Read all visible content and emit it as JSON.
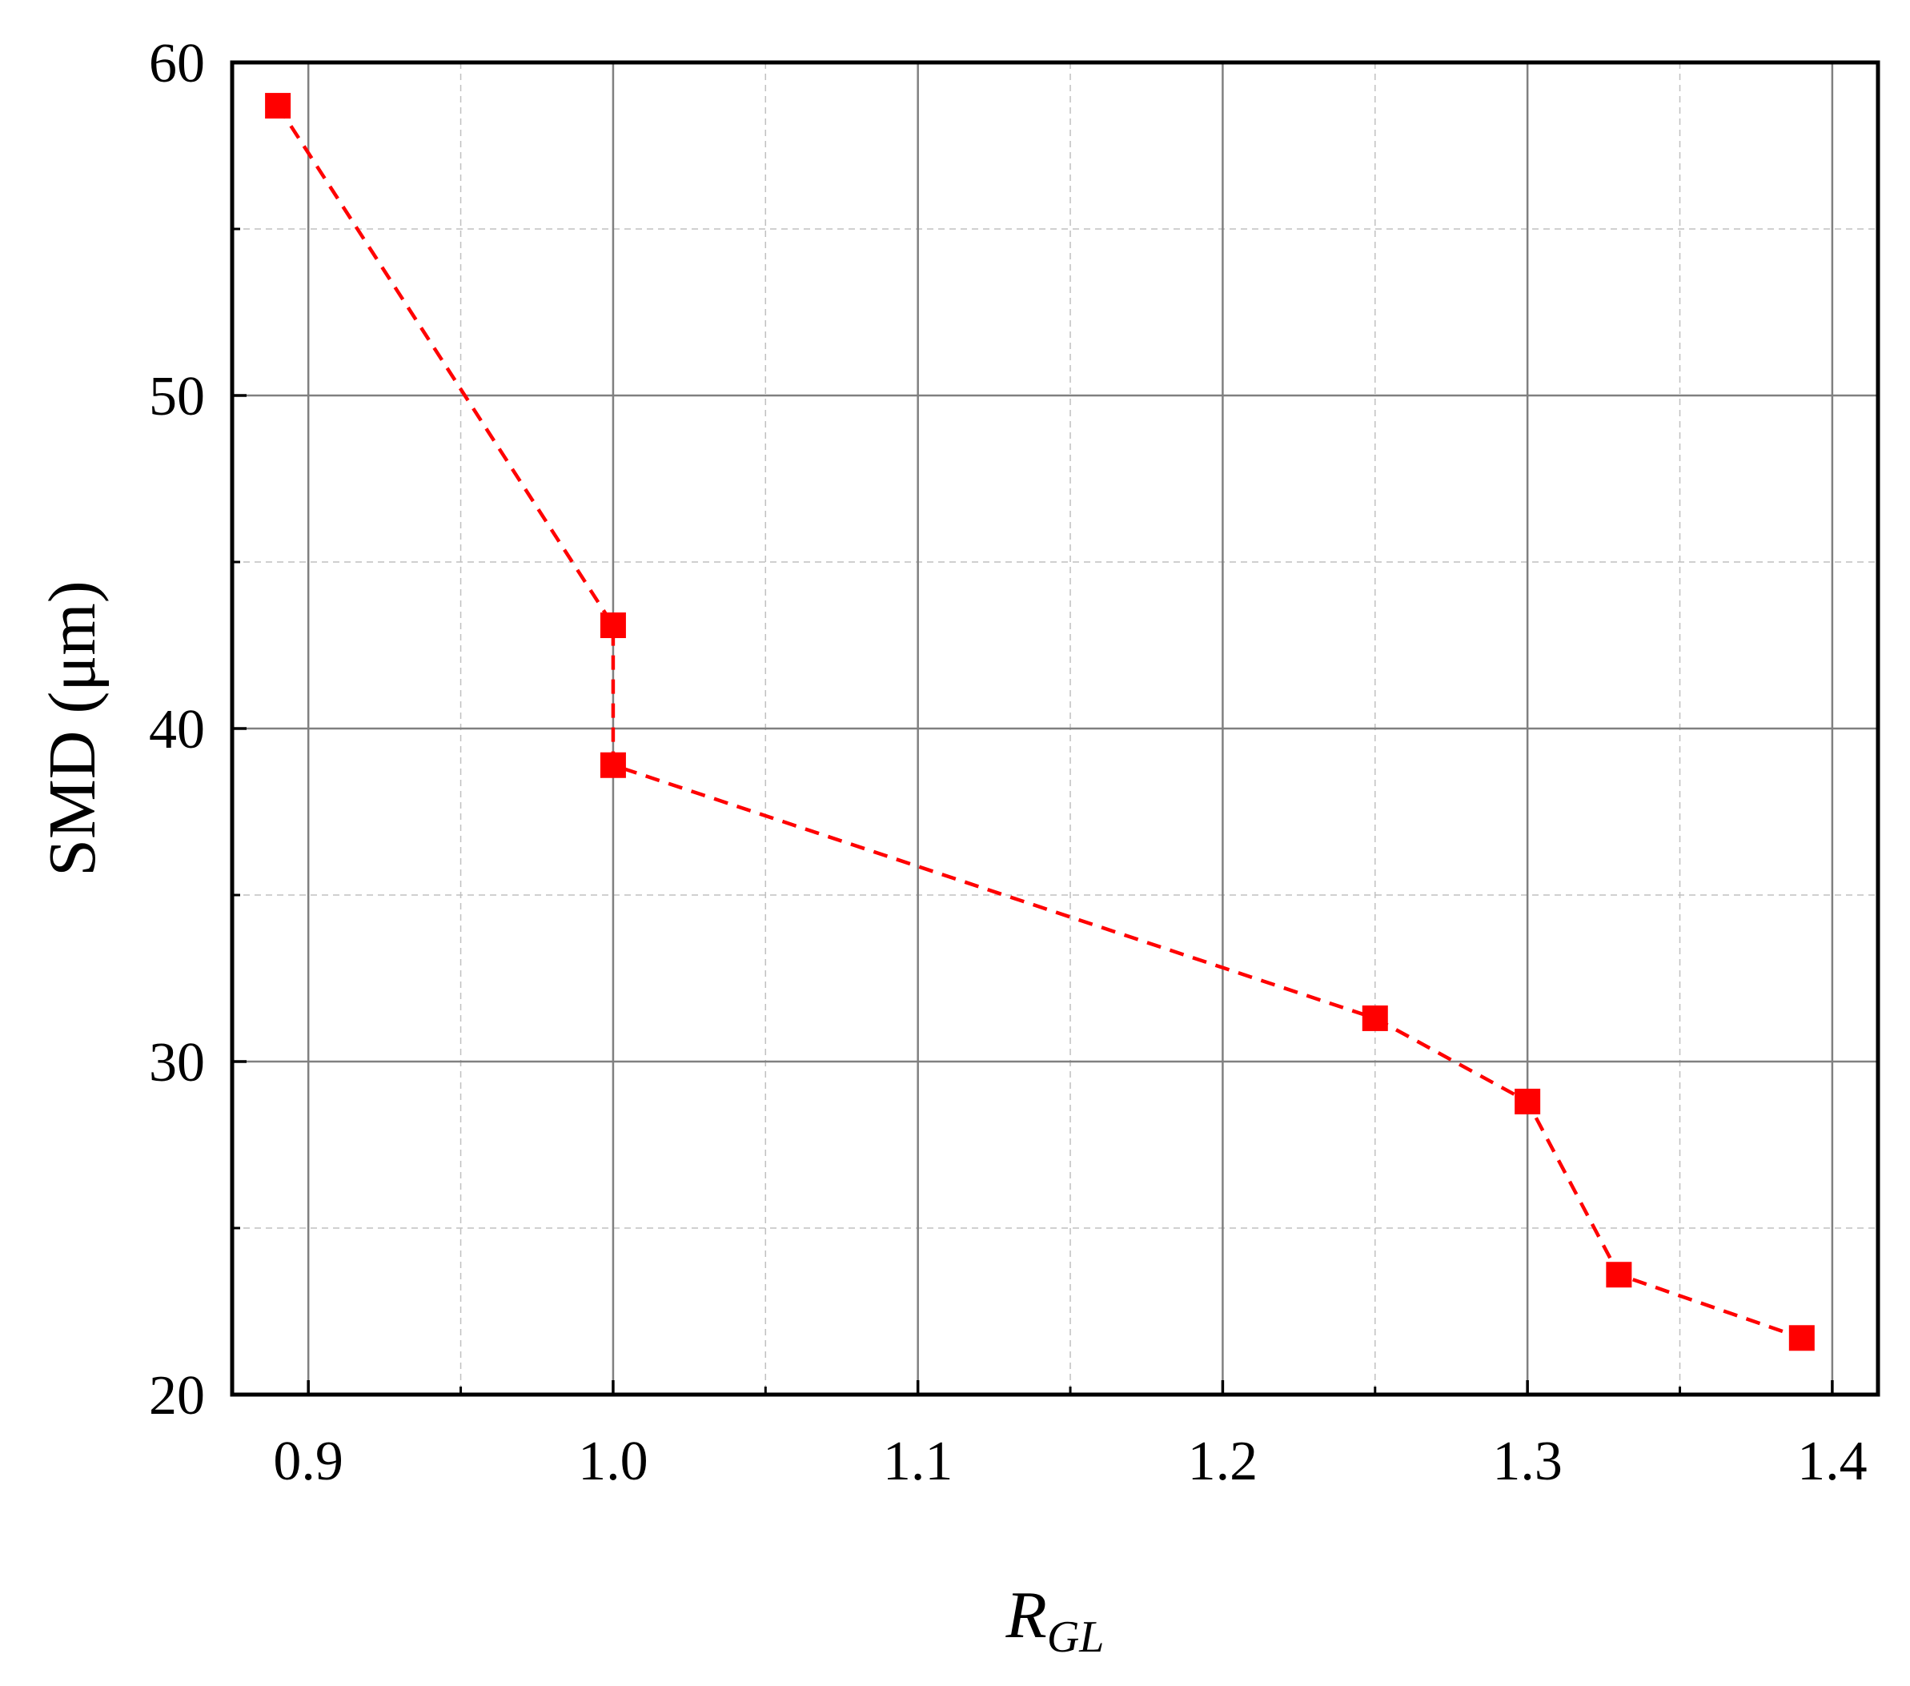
{
  "chart_data": {
    "type": "line",
    "title": "",
    "xlabel_main": "R",
    "xlabel_sub": "GL",
    "ylabel": "SMD (μm)",
    "xlim": [
      0.875,
      1.415
    ],
    "ylim": [
      20,
      60
    ],
    "xticks": [
      0.9,
      1.0,
      1.1,
      1.2,
      1.3,
      1.4
    ],
    "xtick_labels": [
      "0.9",
      "1.0",
      "1.1",
      "1.2",
      "1.3",
      "1.4"
    ],
    "xminor": [
      0.95,
      1.05,
      1.15,
      1.25,
      1.35
    ],
    "yticks": [
      20,
      30,
      40,
      50,
      60
    ],
    "ytick_labels": [
      "20",
      "30",
      "40",
      "50",
      "60"
    ],
    "yminor": [
      25,
      35,
      45,
      55
    ],
    "grid": true,
    "series": [
      {
        "name": "",
        "color": "#ff0000",
        "marker": "square",
        "line_style": "dashed",
        "x": [
          0.89,
          1.0,
          1.0,
          1.25,
          1.3,
          1.33,
          1.39
        ],
        "y": [
          58.7,
          43.1,
          38.9,
          31.3,
          28.8,
          23.6,
          21.7
        ]
      }
    ]
  },
  "colors": {
    "series": "#ff0000",
    "major_grid": "#808080",
    "minor_grid": "#c0c0c0",
    "axes": "#000000"
  }
}
